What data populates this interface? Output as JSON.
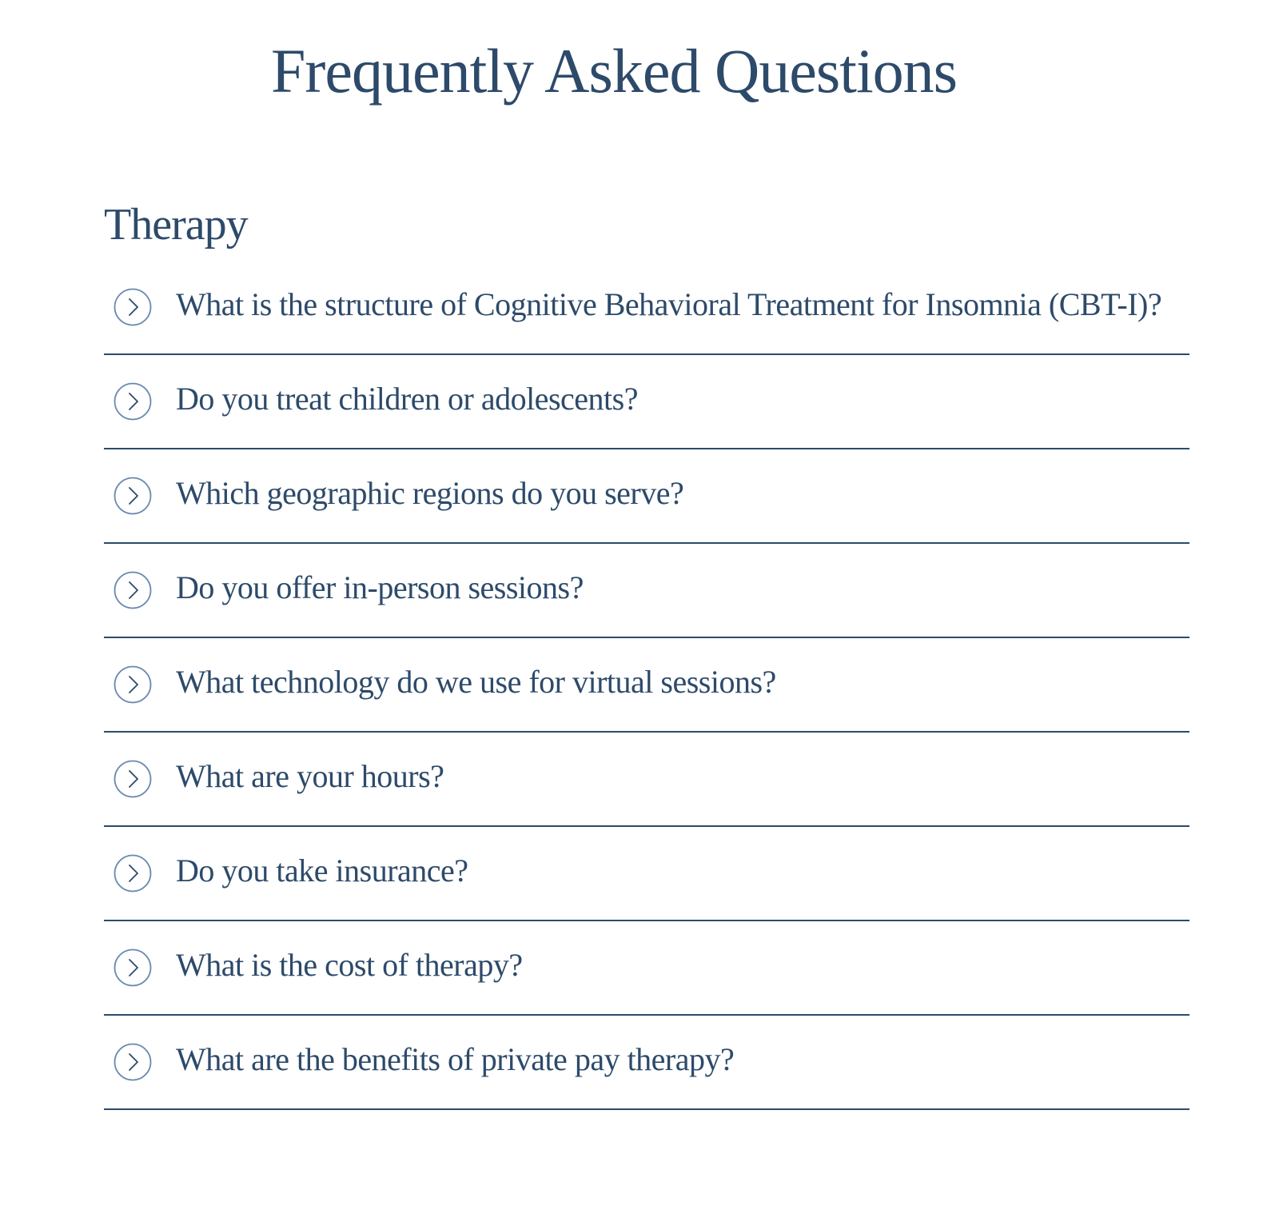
{
  "header": {
    "title": "Frequently Asked Questions"
  },
  "section": {
    "title": "Therapy",
    "icon": "chevron-right-circle-icon",
    "items": [
      {
        "question": "What is the structure of Cognitive Behavioral Treatment for Insomnia (CBT-I)?"
      },
      {
        "question": "Do you treat children or adolescents?"
      },
      {
        "question": "Which geographic regions do you serve?"
      },
      {
        "question": "Do you offer in-person sessions?"
      },
      {
        "question": "What technology do we use for virtual sessions?"
      },
      {
        "question": "What are your hours?"
      },
      {
        "question": "Do you take insurance?"
      },
      {
        "question": "What is the cost of therapy?"
      },
      {
        "question": "What are the benefits of private pay therapy?"
      }
    ]
  },
  "colors": {
    "text": "#2d4a6a",
    "divider": "#2d4a6a",
    "icon": "#6a8ab0",
    "background": "#ffffff"
  }
}
